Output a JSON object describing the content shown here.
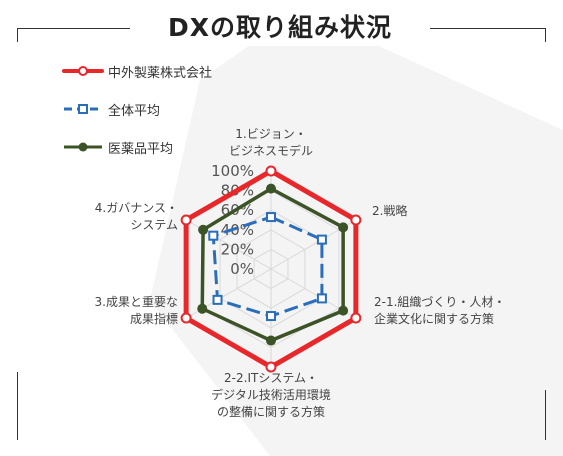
{
  "colors": {
    "company": "#e8272b",
    "overall": "#2a6ebb",
    "pharma": "#3b5326",
    "grid": "#d9d9d9",
    "background_shape": "#f2f2f2"
  },
  "chart_data": {
    "type": "radar",
    "title": "DXの取り組み状況",
    "categories": [
      [
        "1.ビジョン・",
        "ビジネスモデル"
      ],
      [
        "2.戦略"
      ],
      [
        "2-1.組織づくり・人材・",
        "企業文化に関する方策"
      ],
      [
        "2-2.ITシステム・",
        "デジタル技術活用環境",
        "の整備に関する方策"
      ],
      [
        "3.成果と重要な",
        "成果指標"
      ],
      [
        "4.ガバナンス・",
        "システム"
      ]
    ],
    "rlim": [
      0,
      100
    ],
    "ticks": [
      "0%",
      "20%",
      "40%",
      "60%",
      "80%",
      "100%"
    ],
    "grid": true,
    "legend_position": "top-left",
    "series": [
      {
        "name": "中外製薬株式会社",
        "values": [
          100,
          100,
          100,
          100,
          100,
          100
        ]
      },
      {
        "name": "全体平均",
        "values": [
          53,
          60,
          60,
          48,
          63,
          68
        ]
      },
      {
        "name": "医薬品平均",
        "values": [
          82,
          85,
          85,
          73,
          81,
          80
        ]
      }
    ]
  }
}
